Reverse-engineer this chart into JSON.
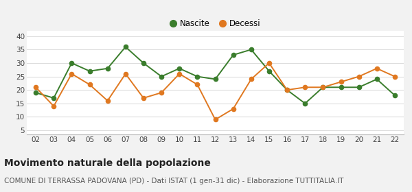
{
  "years": [
    "02",
    "03",
    "04",
    "05",
    "06",
    "07",
    "08",
    "09",
    "10",
    "11",
    "12",
    "13",
    "14",
    "15",
    "16",
    "17",
    "18",
    "19",
    "20",
    "21",
    "22"
  ],
  "nascite": [
    19,
    17,
    30,
    27,
    28,
    36,
    30,
    25,
    28,
    25,
    24,
    33,
    35,
    27,
    20,
    15,
    21,
    21,
    21,
    24,
    18
  ],
  "decessi": [
    21,
    14,
    26,
    22,
    16,
    26,
    17,
    19,
    26,
    22,
    9,
    13,
    24,
    30,
    20,
    21,
    21,
    23,
    25,
    28,
    25
  ],
  "nascite_color": "#3a7d2c",
  "decessi_color": "#e07820",
  "bg_color": "#f2f2f2",
  "plot_bg_color": "#ffffff",
  "grid_color": "#dddddd",
  "title": "Movimento naturale della popolazione",
  "subtitle": "COMUNE DI TERRASSA PADOVANA (PD) - Dati ISTAT (1 gen-31 dic) - Elaborazione TUTTITALIA.IT",
  "ylabel_ticks": [
    5,
    10,
    15,
    20,
    25,
    30,
    35,
    40
  ],
  "ylim": [
    3.5,
    42
  ],
  "legend_nascite": "Nascite",
  "legend_decessi": "Decessi",
  "title_fontsize": 10,
  "subtitle_fontsize": 7.5,
  "tick_fontsize": 7.5,
  "legend_fontsize": 8.5,
  "marker_size": 4.5,
  "linewidth": 1.4
}
